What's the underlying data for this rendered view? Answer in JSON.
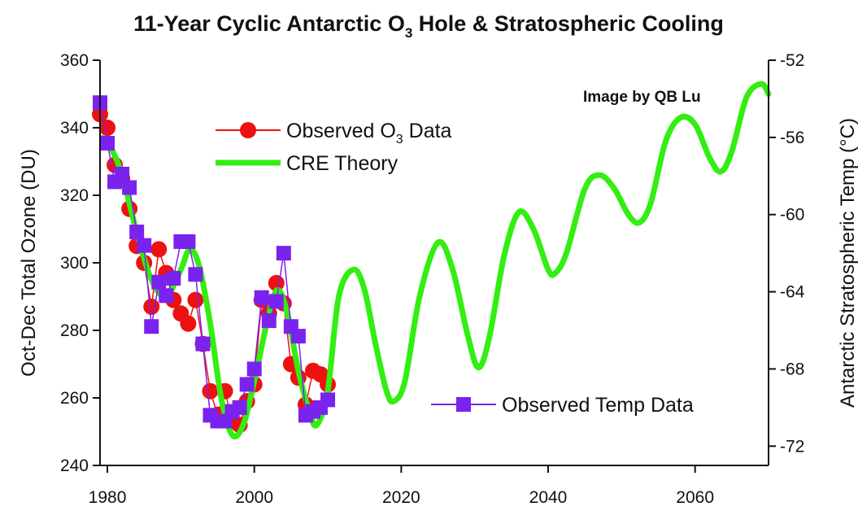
{
  "chart_data": {
    "type": "line",
    "title": "11-Year Cyclic Antarctic O",
    "title_sub": "3",
    "title_rest": " Hole & Stratospheric Cooling",
    "credit": "Image by QB Lu",
    "xlabel": "",
    "ylabel_left": "Oct-Dec Total Ozone (DU)",
    "ylabel_right": "Antarctic Stratospheric Temp (°C)",
    "xlim": [
      1979,
      2070
    ],
    "ylim_left": [
      240,
      360
    ],
    "ylim_right": [
      -73,
      -52
    ],
    "x_ticks": [
      1980,
      2000,
      2020,
      2040,
      2060
    ],
    "y_ticks_left": [
      240,
      260,
      280,
      300,
      320,
      340,
      360
    ],
    "y_ticks_right": [
      -72,
      -68,
      -64,
      -60,
      -56,
      -52
    ],
    "grid": false,
    "colors": {
      "observed_o3": "#ee1111",
      "cre_theory": "#33ee11",
      "observed_temp": "#7a22ee",
      "axis": "#111111"
    },
    "legend": [
      {
        "key": "observed_o3",
        "label_main": "Observed O",
        "label_sub": "3",
        "label_rest": " Data"
      },
      {
        "key": "cre_theory",
        "label_main": "CRE Theory",
        "label_sub": "",
        "label_rest": ""
      },
      {
        "key": "observed_temp",
        "label_main": "Observed Temp Data",
        "label_sub": "",
        "label_rest": ""
      }
    ],
    "series": [
      {
        "name": "CRE Theory",
        "axis": "left",
        "x": [
          1979.3,
          1980.5,
          1982,
          1984,
          1986,
          1988,
          1990,
          1991.2,
          1992.5,
          1994,
          1995.5,
          1997,
          1998.5,
          2000,
          2002,
          2003.2,
          2004.5,
          2006,
          2007.5,
          2008.5,
          2010,
          2011.5,
          2013.5,
          2015,
          2016.5,
          2018,
          2019,
          2020.5,
          2022.5,
          2025,
          2027,
          2029,
          2030.5,
          2032,
          2034,
          2036,
          2038,
          2040,
          2041,
          2042.5,
          2045,
          2047,
          2049,
          2051,
          2052.5,
          2054,
          2056,
          2058,
          2060,
          2062,
          2063.5,
          2065,
          2067,
          2069,
          2070
        ],
        "values": [
          337,
          334,
          326,
          309,
          295,
          290,
          298,
          304,
          299,
          282,
          260,
          249,
          252,
          265,
          285,
          292,
          285,
          268,
          256,
          252,
          262,
          290,
          298,
          292,
          276,
          262,
          259,
          265,
          290,
          306,
          298,
          279,
          269,
          278,
          302,
          315,
          310,
          298,
          297,
          303,
          322,
          326,
          322,
          314,
          312,
          318,
          336,
          343,
          341,
          331,
          327,
          333,
          349,
          353,
          350
        ]
      },
      {
        "name": "Observed O3 Data",
        "axis": "left",
        "x": [
          1979,
          1980,
          1981,
          1982,
          1983,
          1984,
          1985,
          1986,
          1987,
          1988,
          1989,
          1990,
          1991,
          1992,
          1993,
          1994,
          1995,
          1996,
          1997,
          1998,
          1999,
          2000,
          2001,
          2002,
          2003,
          2004,
          2005,
          2006,
          2007,
          2008,
          2009,
          2010
        ],
        "values": [
          344,
          340,
          329,
          325,
          316,
          305,
          300,
          287,
          304,
          297,
          289,
          285,
          282,
          289,
          276,
          262,
          255,
          262,
          253,
          252,
          259,
          264,
          289,
          285,
          294,
          288,
          270,
          266,
          258,
          268,
          267,
          264
        ]
      },
      {
        "name": "Observed Temp Data",
        "axis": "right",
        "x": [
          1979,
          1980,
          1981,
          1982,
          1983,
          1984,
          1985,
          1986,
          1987,
          1988,
          1989,
          1990,
          1991,
          1992,
          1993,
          1994,
          1995,
          1996,
          1997,
          1998,
          1999,
          2000,
          2001,
          2002,
          2003,
          2004,
          2005,
          2006,
          2007,
          2008,
          2009,
          2010
        ],
        "values": [
          -54.2,
          -56.3,
          -58.3,
          -57.9,
          -58.6,
          -60.9,
          -61.6,
          -65.8,
          -63.5,
          -64.2,
          -63.3,
          -61.4,
          -61.4,
          -63.1,
          -66.7,
          -70.4,
          -70.7,
          -70.7,
          -70.2,
          -70.0,
          -68.8,
          -68.0,
          -64.3,
          -65.5,
          -64.5,
          -62.0,
          -65.8,
          -66.3,
          -70.4,
          -70.2,
          -70.0,
          -69.6
        ]
      }
    ]
  }
}
